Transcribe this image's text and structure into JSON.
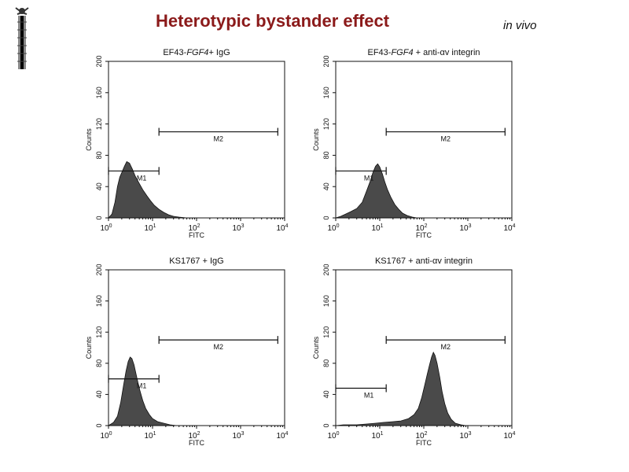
{
  "slide": {
    "title": "Heterotypic bystander effect",
    "subtitle": "in vivo"
  },
  "colors": {
    "title": "#8b1a1a",
    "histogram_fill": "#4a4a4a"
  },
  "chart_data": [
    {
      "type": "area",
      "title_parts": [
        {
          "text": "EF43-",
          "italic": false
        },
        {
          "text": "FGF4",
          "italic": true
        },
        {
          "text": "+ IgG",
          "italic": false
        }
      ],
      "xlabel": "FITC",
      "ylabel": "Counts",
      "xscale": "log",
      "xlim": [
        1,
        10000
      ],
      "ylim": [
        0,
        200
      ],
      "xticks": [
        "10^0",
        "10^1",
        "10^2",
        "10^3",
        "10^4"
      ],
      "yticks": [
        0,
        40,
        80,
        120,
        160,
        200
      ],
      "gates": [
        {
          "label": "M1",
          "from": 1,
          "to": 14,
          "y": 60
        },
        {
          "label": "M2",
          "from": 14,
          "to": 7000,
          "y": 110
        }
      ],
      "histogram": [
        [
          1,
          0
        ],
        [
          1.2,
          5
        ],
        [
          1.4,
          20
        ],
        [
          1.6,
          40
        ],
        [
          1.8,
          52
        ],
        [
          2,
          58
        ],
        [
          2.3,
          66
        ],
        [
          2.6,
          72
        ],
        [
          3,
          70
        ],
        [
          3.5,
          62
        ],
        [
          4,
          54
        ],
        [
          5,
          44
        ],
        [
          6,
          36
        ],
        [
          7.5,
          28
        ],
        [
          9,
          22
        ],
        [
          11,
          16
        ],
        [
          14,
          11
        ],
        [
          18,
          7
        ],
        [
          23,
          4
        ],
        [
          30,
          2
        ],
        [
          40,
          1
        ],
        [
          60,
          0
        ]
      ]
    },
    {
      "type": "area",
      "title_parts": [
        {
          "text": "EF43-",
          "italic": false
        },
        {
          "text": "FGF4",
          "italic": true
        },
        {
          "text": " + anti-αv integrin",
          "italic": false
        }
      ],
      "xlabel": "FITC",
      "ylabel": "Counts",
      "xscale": "log",
      "xlim": [
        1,
        10000
      ],
      "ylim": [
        0,
        200
      ],
      "xticks": [
        "10^0",
        "10^1",
        "10^2",
        "10^3",
        "10^4"
      ],
      "yticks": [
        0,
        40,
        80,
        120,
        160,
        200
      ],
      "gates": [
        {
          "label": "M1",
          "from": 1,
          "to": 14,
          "y": 60
        },
        {
          "label": "M2",
          "from": 14,
          "to": 7000,
          "y": 110
        }
      ],
      "histogram": [
        [
          1,
          0
        ],
        [
          1.3,
          2
        ],
        [
          1.7,
          5
        ],
        [
          2.2,
          8
        ],
        [
          3,
          12
        ],
        [
          4,
          20
        ],
        [
          5,
          34
        ],
        [
          6,
          46
        ],
        [
          7,
          58
        ],
        [
          8,
          66
        ],
        [
          9,
          69
        ],
        [
          10,
          65
        ],
        [
          11.5,
          56
        ],
        [
          13,
          46
        ],
        [
          15,
          36
        ],
        [
          18,
          26
        ],
        [
          22,
          17
        ],
        [
          27,
          11
        ],
        [
          33,
          6
        ],
        [
          42,
          3
        ],
        [
          55,
          1
        ],
        [
          70,
          0
        ]
      ]
    },
    {
      "type": "area",
      "title_parts": [
        {
          "text": "KS1767 + IgG",
          "italic": false
        }
      ],
      "xlabel": "FITC",
      "ylabel": "Counts",
      "xscale": "log",
      "xlim": [
        1,
        10000
      ],
      "ylim": [
        0,
        200
      ],
      "xticks": [
        "10^0",
        "10^1",
        "10^2",
        "10^3",
        "10^4"
      ],
      "yticks": [
        0,
        40,
        80,
        120,
        160,
        200
      ],
      "gates": [
        {
          "label": "M1",
          "from": 1,
          "to": 14,
          "y": 60
        },
        {
          "label": "M2",
          "from": 14,
          "to": 7000,
          "y": 110
        }
      ],
      "histogram": [
        [
          1,
          0
        ],
        [
          1.3,
          4
        ],
        [
          1.6,
          12
        ],
        [
          1.9,
          30
        ],
        [
          2.2,
          52
        ],
        [
          2.5,
          70
        ],
        [
          2.8,
          82
        ],
        [
          3.1,
          88
        ],
        [
          3.4,
          86
        ],
        [
          3.8,
          78
        ],
        [
          4.3,
          64
        ],
        [
          5,
          48
        ],
        [
          6,
          32
        ],
        [
          7,
          22
        ],
        [
          8.5,
          14
        ],
        [
          10,
          9
        ],
        [
          13,
          5
        ],
        [
          18,
          3
        ],
        [
          25,
          1
        ],
        [
          35,
          0
        ]
      ]
    },
    {
      "type": "area",
      "title_parts": [
        {
          "text": "KS1767 + anti-αv integrin",
          "italic": false
        }
      ],
      "xlabel": "FITC",
      "ylabel": "Counts",
      "xscale": "log",
      "xlim": [
        1,
        10000
      ],
      "ylim": [
        0,
        200
      ],
      "xticks": [
        "10^0",
        "10^1",
        "10^2",
        "10^3",
        "10^4"
      ],
      "yticks": [
        0,
        40,
        80,
        120,
        160,
        200
      ],
      "gates": [
        {
          "label": "M1",
          "from": 1,
          "to": 14,
          "y": 48
        },
        {
          "label": "M2",
          "from": 14,
          "to": 7000,
          "y": 110
        }
      ],
      "histogram": [
        [
          1,
          0
        ],
        [
          1.5,
          1
        ],
        [
          3,
          1
        ],
        [
          5,
          2
        ],
        [
          8,
          3
        ],
        [
          12,
          4
        ],
        [
          20,
          5
        ],
        [
          30,
          6
        ],
        [
          45,
          9
        ],
        [
          60,
          14
        ],
        [
          75,
          22
        ],
        [
          90,
          36
        ],
        [
          105,
          52
        ],
        [
          120,
          66
        ],
        [
          135,
          78
        ],
        [
          150,
          88
        ],
        [
          165,
          94
        ],
        [
          180,
          90
        ],
        [
          200,
          80
        ],
        [
          230,
          62
        ],
        [
          260,
          44
        ],
        [
          300,
          28
        ],
        [
          350,
          16
        ],
        [
          420,
          8
        ],
        [
          520,
          3
        ],
        [
          700,
          1
        ],
        [
          900,
          0
        ]
      ]
    }
  ]
}
